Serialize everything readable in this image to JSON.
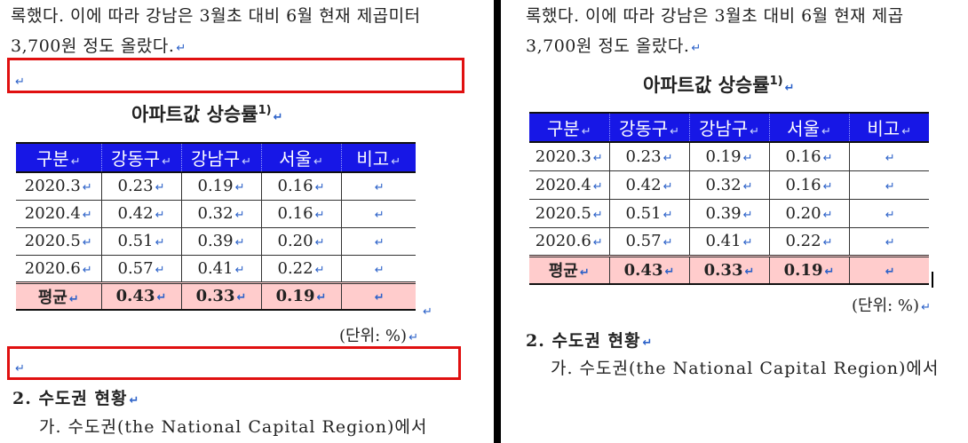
{
  "text": {
    "para_line1": "록했다. 이에 따라 강남은 3월초 대비 6월 현재 제곱미터",
    "para_line1_right": "록했다. 이에 따라 강남은 3월초 대비 6월 현재 제곱",
    "para_line2": "3,700원 정도 올랐다.",
    "table_title": "아파트값 상승률",
    "footnote_marker": "1)",
    "unit_note": "(단위: %)",
    "section_heading": "2. 수도권 현황",
    "section_body": "가. 수도권(the National Capital Region)에서",
    "para_mark": "↵"
  },
  "table": {
    "headers": [
      "구분",
      "강동구",
      "강남구",
      "서울",
      "비고"
    ],
    "rows": [
      [
        "2020.3",
        "0.23",
        "0.19",
        "0.16",
        ""
      ],
      [
        "2020.4",
        "0.42",
        "0.32",
        "0.16",
        ""
      ],
      [
        "2020.5",
        "0.51",
        "0.39",
        "0.20",
        ""
      ],
      [
        "2020.6",
        "0.57",
        "0.41",
        "0.22",
        ""
      ]
    ],
    "average_row": [
      "평균",
      "0.43",
      "0.33",
      "0.19",
      ""
    ]
  },
  "colors": {
    "header_bg": "#1717e6",
    "average_bg": "#ffcccc",
    "highlight_box": "#e01010",
    "paragraph_mark": "#2a60c8"
  }
}
